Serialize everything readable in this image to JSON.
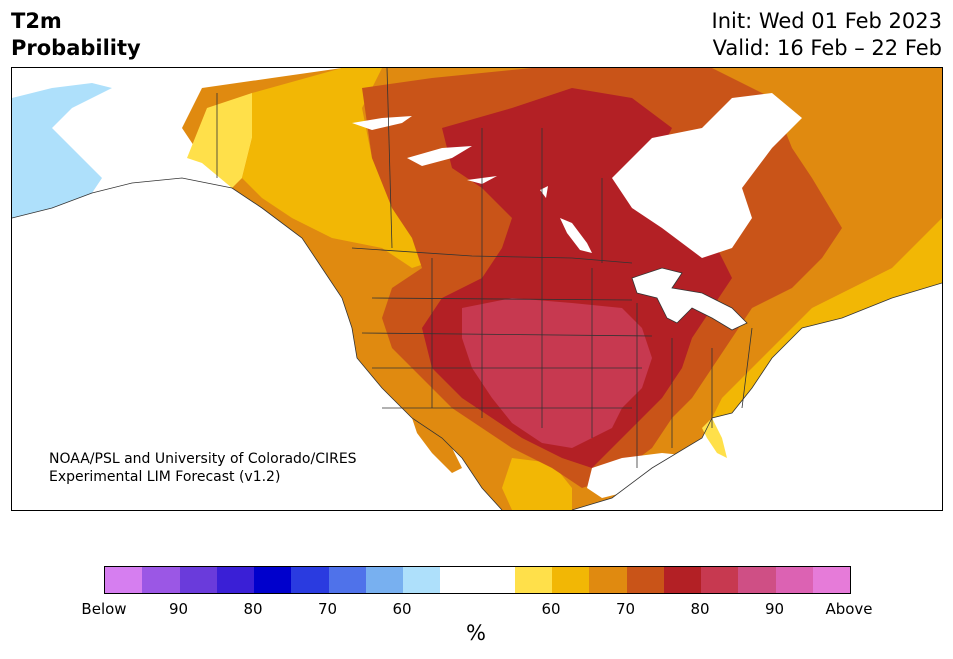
{
  "header": {
    "title_line1": "T2m",
    "title_line2": "Probability",
    "init_text": "Init: Wed 01 Feb 2023",
    "valid_text": "Valid: 16 Feb – 22 Feb"
  },
  "credit": {
    "line1": "NOAA/PSL and University of Colorado/CIRES",
    "line2": "Experimental LIM Forecast (v1.2)"
  },
  "colorbar": {
    "colors": [
      "#d67ef0",
      "#9b57e5",
      "#6a3bdb",
      "#3a1fd6",
      "#0000cc",
      "#2a3be0",
      "#4f72ea",
      "#78b0f0",
      "#aee0fb",
      "#ffffff",
      "#ffffff",
      "#ffe04a",
      "#f2b705",
      "#e08a10",
      "#c95418",
      "#b32025",
      "#c73950",
      "#cf4f85",
      "#dc62b3",
      "#e67bd9"
    ],
    "tick_labels": [
      "Below",
      "90",
      "80",
      "70",
      "60",
      "60",
      "70",
      "80",
      "90",
      "Above"
    ],
    "unit": "%"
  },
  "map": {
    "legend_colors": {
      "above_90": "#c73950",
      "above_80": "#b32025",
      "above_70": "#c95418",
      "above_65": "#e08a10",
      "above_60": "#f2b705",
      "above_55": "#ffe04a",
      "below_55": "#aee0fb",
      "below_60": "#78b0f0",
      "below_65": "#4f72ea"
    }
  }
}
